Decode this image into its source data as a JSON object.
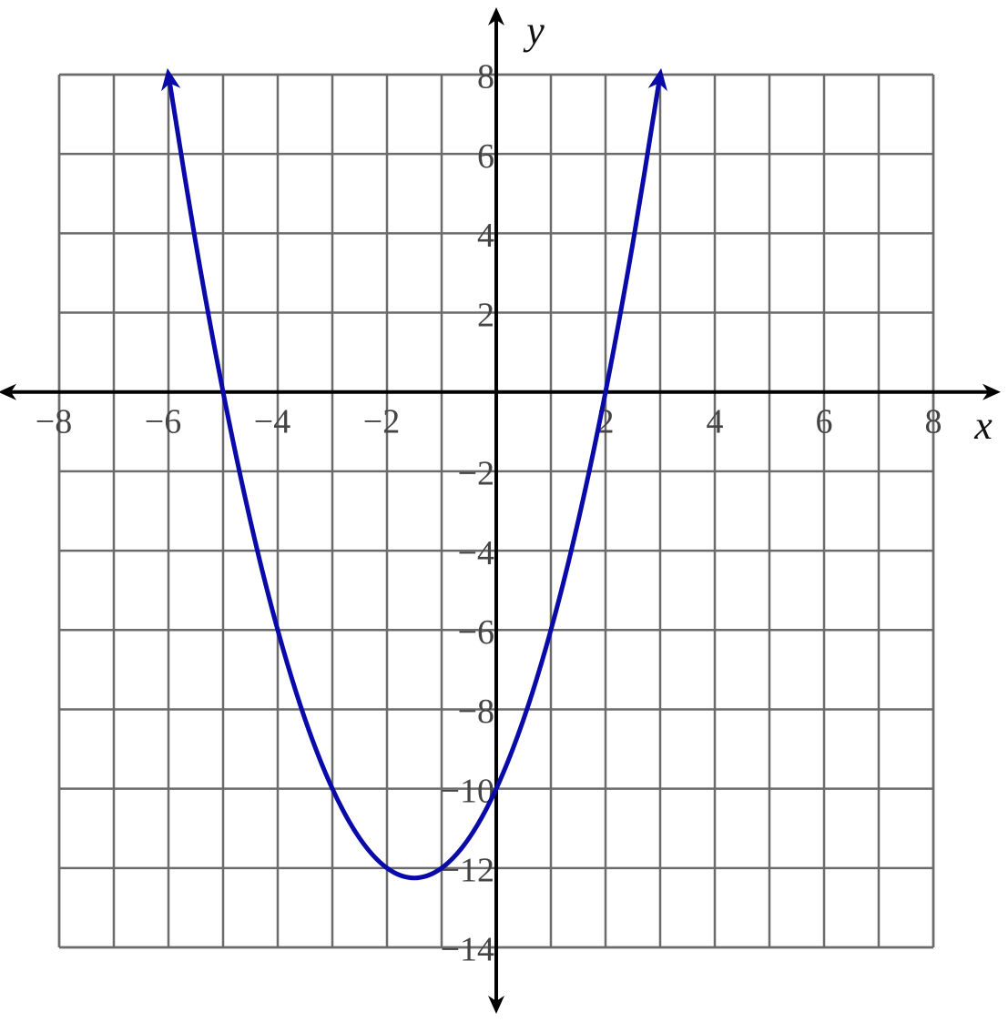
{
  "chart_data": {
    "type": "line",
    "x_label": "x",
    "y_label": "y",
    "x": [
      -6,
      -5.5,
      -5,
      -4.5,
      -4,
      -3.5,
      -3,
      -2.5,
      -2,
      -1.5,
      -1,
      -0.5,
      0,
      0.5,
      1,
      1.5,
      2,
      2.5,
      3
    ],
    "series": [
      {
        "color": "#0a0aa8",
        "values": [
          8,
          3.75,
          0,
          -3.25,
          -6,
          -8.25,
          -10,
          -11.25,
          -12,
          -12.25,
          -12,
          -11.25,
          -10,
          -8.25,
          -6,
          -3.25,
          0,
          3.75,
          8
        ]
      }
    ],
    "xlim": [
      -8,
      8
    ],
    "ylim": [
      -14,
      8
    ],
    "xticks": [
      {
        "value": -8,
        "label": "−8"
      },
      {
        "value": -6,
        "label": "−6"
      },
      {
        "value": -4,
        "label": "−4"
      },
      {
        "value": -2,
        "label": "−2"
      },
      2,
      4,
      6,
      8
    ],
    "yticks": [
      {
        "value": -14,
        "label": "−14"
      },
      {
        "value": -12,
        "label": "−12"
      },
      {
        "value": -10,
        "label": "−10"
      },
      {
        "value": -8,
        "label": "−8"
      },
      {
        "value": -6,
        "label": "−6"
      },
      {
        "value": -4,
        "label": "−4"
      },
      {
        "value": -2,
        "label": "−2"
      },
      2,
      4,
      6,
      8
    ],
    "x_minor_grid": [
      -7,
      -5,
      -3,
      -1,
      1,
      3,
      5,
      7
    ],
    "grid": true
  }
}
